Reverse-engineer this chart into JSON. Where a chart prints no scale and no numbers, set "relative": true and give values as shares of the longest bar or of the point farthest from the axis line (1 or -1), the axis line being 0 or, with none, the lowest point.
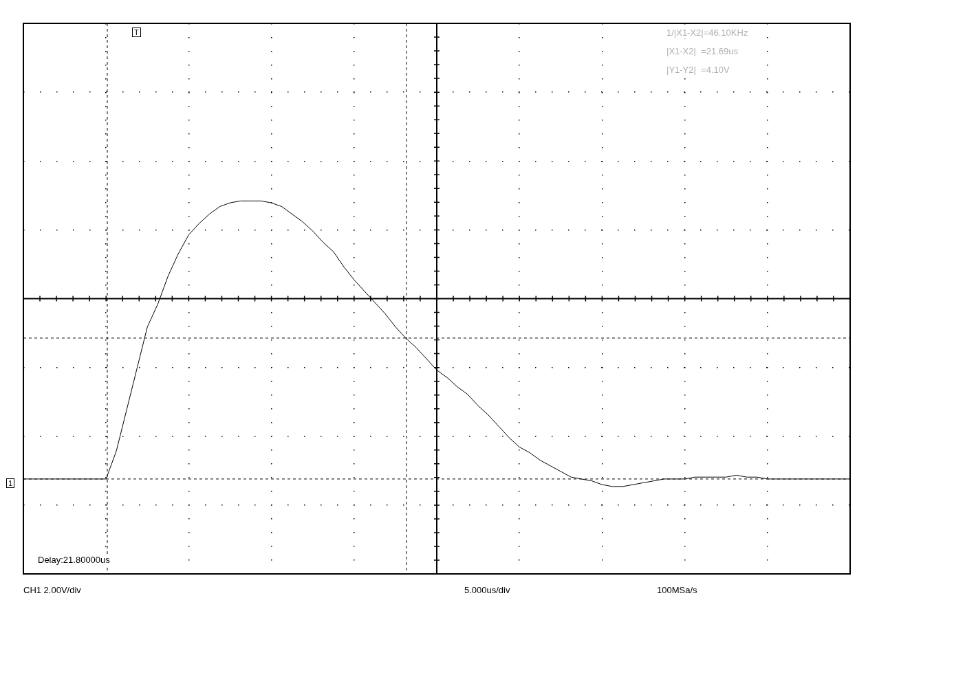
{
  "chart_data": {
    "type": "line",
    "relative": true,
    "grid": true,
    "legend": false,
    "marker": "none",
    "line_style": "solid",
    "tick_labels": false,
    "categories": [
      null,
      null,
      null,
      null,
      null,
      null,
      null,
      null,
      null,
      null,
      null,
      null,
      null,
      null,
      null,
      null,
      null,
      null,
      null,
      null,
      null,
      null,
      null,
      null,
      null,
      null,
      null,
      null,
      null,
      null,
      null,
      null,
      null,
      null,
      null,
      null,
      null,
      null,
      null,
      null,
      null,
      null,
      null,
      null,
      null,
      null,
      null,
      null,
      null,
      null,
      null,
      null,
      null,
      null,
      null,
      null,
      null,
      null,
      null,
      null,
      null,
      null,
      null,
      null,
      null,
      null,
      null,
      null,
      null,
      null,
      null,
      null,
      null,
      null,
      null,
      null,
      null,
      null,
      null,
      null,
      null
    ],
    "series": [
      {
        "color": "#000000",
        "values": [
          -0.96,
          -0.96,
          -0.96,
          -0.96,
          -0.96,
          -0.96,
          -0.96,
          -0.96,
          -0.96,
          -0.81,
          -0.59,
          -0.37,
          -0.15,
          -0.03,
          0.12,
          0.24,
          0.34,
          0.4,
          0.45,
          0.49,
          0.51,
          0.52,
          0.52,
          0.52,
          0.51,
          0.49,
          0.45,
          0.41,
          0.36,
          0.3,
          0.25,
          0.17,
          0.1,
          0.04,
          -0.02,
          -0.08,
          -0.15,
          -0.21,
          -0.26,
          -0.32,
          -0.38,
          -0.42,
          -0.47,
          -0.51,
          -0.57,
          -0.62,
          -0.68,
          -0.74,
          -0.79,
          -0.82,
          -0.86,
          -0.89,
          -0.92,
          -0.95,
          -0.96,
          -0.97,
          -0.99,
          -1.0,
          -1.0,
          -0.99,
          -0.98,
          -0.97,
          -0.96,
          -0.96,
          -0.96,
          -0.95,
          -0.95,
          -0.95,
          -0.95,
          -0.94,
          -0.95,
          -0.95,
          -0.96,
          -0.96,
          -0.96,
          -0.96,
          -0.96,
          -0.96,
          -0.96,
          -0.96,
          -0.96
        ]
      }
    ],
    "ref_lines": [
      {
        "axis": "y",
        "value": -0.21,
        "line_style": "dashed"
      },
      {
        "axis": "y",
        "value": -0.96,
        "line_style": "dashed"
      }
    ],
    "annotations": [
      "1/|X1-X2|=46.10KHz",
      "|X1-X2|  =21.69us",
      "|Y1-Y2|  =4.10V",
      "Delay:21.80000us",
      "CH1 2.00V/div",
      "5.000us/div",
      "100MSa/s",
      "T",
      "1"
    ]
  }
}
